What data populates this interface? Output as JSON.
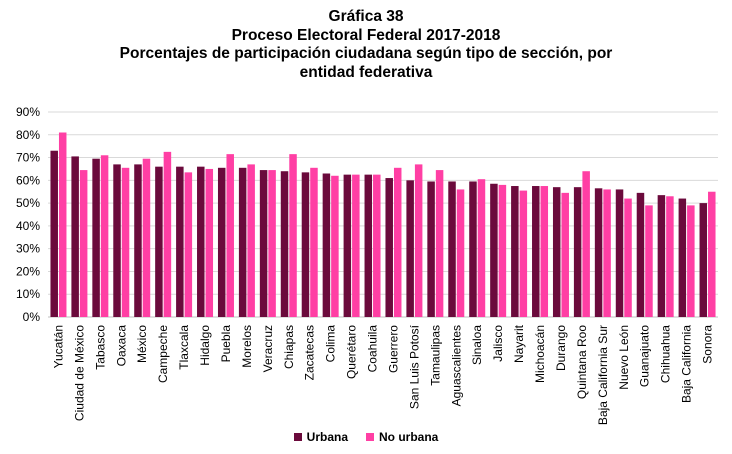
{
  "titles": {
    "line1": "Gráfica 38",
    "line2": "Proceso Electoral Federal 2017-2018",
    "line3": "Porcentajes de participación ciudadana según tipo de sección, por",
    "line4": "entidad federativa"
  },
  "colors": {
    "urbana": "#6b0a3c",
    "no_urbana": "#ff3fa4",
    "grid": "#d9d9d9",
    "axis": "#bfbfbf"
  },
  "chart_data": {
    "type": "bar",
    "title": "Gráfica 38 Proceso Electoral Federal 2017-2018 Porcentajes de participación ciudadana según tipo de sección, por entidad federativa",
    "xlabel": "",
    "ylabel": "",
    "ylim": [
      0,
      90
    ],
    "yticks": [
      "0%",
      "10%",
      "20%",
      "30%",
      "40%",
      "50%",
      "60%",
      "70%",
      "80%",
      "90%"
    ],
    "grid": true,
    "legend_position": "bottom",
    "categories": [
      "Yucatán",
      "Ciudad de México",
      "Tabasco",
      "Oaxaca",
      "México",
      "Campeche",
      "Tlaxcala",
      "Hidalgo",
      "Puebla",
      "Morelos",
      "Veracruz",
      "Chiapas",
      "Zacatecas",
      "Colima",
      "Querétaro",
      "Coahuila",
      "Guerrero",
      "San Luis Potosí",
      "Tamaulipas",
      "Aguascalientes",
      "Sinaloa",
      "Jalisco",
      "Nayarit",
      "Michoacán",
      "Durango",
      "Quintana Roo",
      "Baja California Sur",
      "Nuevo León",
      "Guanajuato",
      "Chihuahua",
      "Baja California",
      "Sonora"
    ],
    "series": [
      {
        "name": "Urbana",
        "values": [
          73,
          70.5,
          69.5,
          67,
          67,
          66,
          66,
          66,
          65.5,
          65.5,
          64.5,
          64,
          63.5,
          63,
          62.5,
          62.5,
          61,
          60,
          59.5,
          59.5,
          59.5,
          58.5,
          57.5,
          57.5,
          57,
          57,
          56.5,
          56,
          54.5,
          53.5,
          52,
          50
        ]
      },
      {
        "name": "No urbana",
        "values": [
          81,
          64.5,
          71,
          65.5,
          69.5,
          72.5,
          63.5,
          65,
          71.5,
          67,
          64.5,
          71.5,
          65.5,
          62,
          62.5,
          62.5,
          65.5,
          67,
          64.5,
          56,
          60.5,
          58,
          55.5,
          57.5,
          54.5,
          64,
          56,
          52,
          49,
          53,
          49,
          55
        ]
      }
    ]
  }
}
